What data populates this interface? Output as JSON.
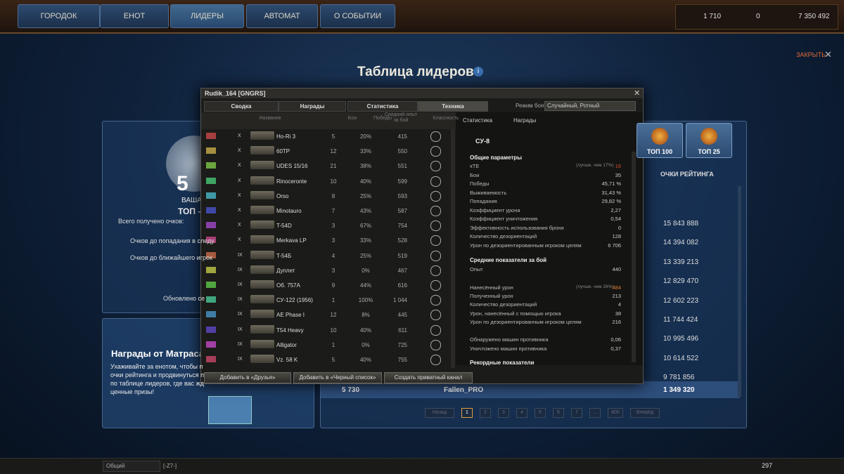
{
  "nav": {
    "tabs": [
      "ГОРОДОК",
      "ЕНОТ",
      "ЛИДЕРЫ",
      "АВТОМАТ",
      "О СОБЫТИИ"
    ],
    "currencies": [
      "1 710",
      "0",
      "7 350 492"
    ],
    "close": "ЗАКРЫТЬ"
  },
  "header": {
    "title": "Таблица лидеров"
  },
  "player_panel": {
    "rank": "5",
    "your": "ВАША",
    "top": "ТОП -",
    "lines": [
      "Всего получено очков:",
      "Очков до попадания в следу",
      "Очков до ближайшего игрок",
      "Обновлено се"
    ]
  },
  "rewards_panel": {
    "title": "Награды от Матраса",
    "text": [
      "Ухаживайте за енотом, чтобы п",
      "очки рейтинга и продвинуться п",
      "по таблице лидеров, где вас жд",
      "ценные призы!"
    ]
  },
  "leaderboard": {
    "filters": [
      "ТОП 100",
      "ТОП 25"
    ],
    "column": "ОЧКИ РЕЙТИНГА",
    "scores": [
      "15 843 888",
      "14 394 082",
      "13 339 213",
      "12 829 470",
      "12 602 223",
      "11 744 424",
      "10 995 496",
      "10 614 522",
      "9 781 856"
    ],
    "own_row": {
      "rank": "5 730",
      "name": "Fallen_PRO",
      "score": "1 349 320"
    },
    "pagination": [
      "Назад",
      "1",
      "2",
      "3",
      "4",
      "5",
      "6",
      "7",
      "...",
      "800",
      "Вперёд"
    ]
  },
  "dialog": {
    "title": "Rudik_164 [GNGRS]",
    "tabs": [
      "Сводка",
      "Награды",
      "Статистика",
      "Техника"
    ],
    "mode_label": "Режим боя:",
    "mode": "Случайный, Ротный",
    "columns": [
      "Название",
      "Бои",
      "Победы",
      "Средний опыт за бой",
      "Классность"
    ],
    "rows": [
      {
        "tier": "X",
        "name": "Ho-Ri 3",
        "battles": "5",
        "wins": "20%",
        "xp": "415"
      },
      {
        "tier": "X",
        "name": "60TP",
        "battles": "12",
        "wins": "33%",
        "xp": "550"
      },
      {
        "tier": "X",
        "name": "UDES 15/16",
        "battles": "21",
        "wins": "38%",
        "xp": "551"
      },
      {
        "tier": "X",
        "name": "Rinoceronte",
        "battles": "10",
        "wins": "40%",
        "xp": "599"
      },
      {
        "tier": "X",
        "name": "Orso",
        "battles": "8",
        "wins": "25%",
        "xp": "593"
      },
      {
        "tier": "X",
        "name": "Minotauro",
        "battles": "7",
        "wins": "43%",
        "xp": "587"
      },
      {
        "tier": "X",
        "name": "T-54D",
        "battles": "3",
        "wins": "67%",
        "xp": "754"
      },
      {
        "tier": "X",
        "name": "Merkava LP",
        "battles": "3",
        "wins": "33%",
        "xp": "528"
      },
      {
        "tier": "IX",
        "name": "T-54Б",
        "battles": "4",
        "wins": "25%",
        "xp": "519"
      },
      {
        "tier": "IX",
        "name": "Дуплет",
        "battles": "3",
        "wins": "0%",
        "xp": "467"
      },
      {
        "tier": "IX",
        "name": "Об. 757А",
        "battles": "9",
        "wins": "44%",
        "xp": "616"
      },
      {
        "tier": "IX",
        "name": "СУ-122 (1956)",
        "battles": "1",
        "wins": "100%",
        "xp": "1 044"
      },
      {
        "tier": "IX",
        "name": "AE Phase I",
        "battles": "12",
        "wins": "8%",
        "xp": "445"
      },
      {
        "tier": "IX",
        "name": "T54 Heavy",
        "battles": "10",
        "wins": "40%",
        "xp": "611"
      },
      {
        "tier": "IX",
        "name": "Alligator",
        "battles": "1",
        "wins": "0%",
        "xp": "725"
      },
      {
        "tier": "IX",
        "name": "Vz. 58 K",
        "battles": "5",
        "wins": "40%",
        "xp": "755"
      }
    ],
    "side_tabs": [
      "Статистика",
      "Награды"
    ],
    "vehicle": "СУ-8",
    "general": {
      "title": "Общие параметры",
      "rows": [
        {
          "label": "хТЕ",
          "note": "(лучше, чем 17%)",
          "value": "16"
        },
        {
          "label": "Бои",
          "value": "35"
        },
        {
          "label": "Победы",
          "value": "45,71 %"
        },
        {
          "label": "Выживаемость",
          "value": "31,43 %"
        },
        {
          "label": "Попадания",
          "value": "29,82 %"
        },
        {
          "label": "Коэффициент урона",
          "value": "2,27"
        },
        {
          "label": "Коэффициент уничтожения",
          "value": "0,54"
        },
        {
          "label": "Эффективность использования брони",
          "value": "0"
        },
        {
          "label": "Количество дезориентаций",
          "value": "128"
        },
        {
          "label": "Урон по дезориентированным игроком целям",
          "value": "6 706"
        }
      ]
    },
    "average": {
      "title": "Средние показатели за бой",
      "rows": [
        {
          "label": "Опыт",
          "value": "440"
        },
        {
          "label": "Нанесённый урон",
          "note": "(лучше, чем 26%)",
          "value": "484"
        },
        {
          "label": "Полученный урон",
          "value": "213"
        },
        {
          "label": "Количество дезориентаций",
          "value": "4"
        },
        {
          "label": "Урон, нанесённый с помощью игрока",
          "value": "38"
        },
        {
          "label": "Урон по дезориентированным игроком целям",
          "value": "216"
        },
        {
          "label": "Обнаружено машин противника",
          "value": "0,06"
        },
        {
          "label": "Уничтожено машин противника",
          "value": "0,37"
        }
      ]
    },
    "records_title": "Рекордные показатели",
    "buttons": [
      "Добавить в «Друзья»",
      "Добавить в «Черный список»",
      "Создать приватный канал"
    ]
  },
  "footer": {
    "channel": "Общий",
    "clan": "[-Z7-]",
    "count": "297"
  }
}
